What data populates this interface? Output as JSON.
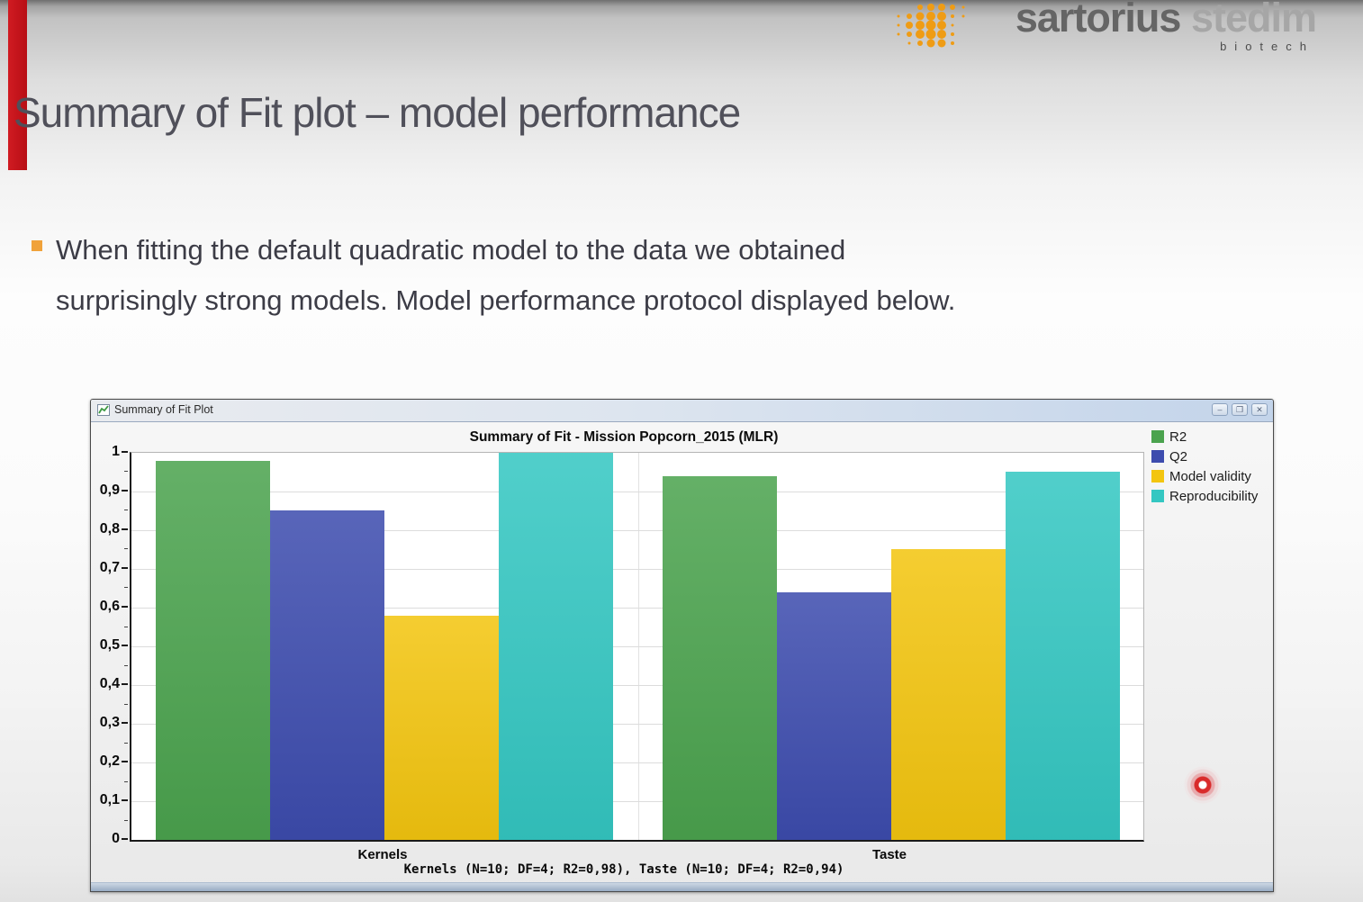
{
  "slide": {
    "title": "Summary of Fit plot – model performance",
    "bullet": {
      "lines": [
        "When fitting the default quadratic model to the data we obtained",
        "surprisingly strong models. Model performance protocol displayed below."
      ]
    }
  },
  "logo": {
    "word1": "sartorius",
    "word2": " stedim",
    "tagline": "biotech",
    "dot_color": "#ef9c15"
  },
  "window": {
    "title": "Summary of Fit Plot",
    "controls": [
      {
        "name": "minimize",
        "glyph": "–"
      },
      {
        "name": "maximize",
        "glyph": "❐"
      },
      {
        "name": "close",
        "glyph": "✕"
      }
    ]
  },
  "chart_data": {
    "type": "bar",
    "title": "Summary of Fit - Mission Popcorn_2015 (MLR)",
    "categories": [
      "Kernels",
      "Taste"
    ],
    "series": [
      {
        "name": "R2",
        "color": "#4ba34e",
        "values": [
          0.98,
          0.94
        ]
      },
      {
        "name": "Q2",
        "color": "#3d4cae",
        "values": [
          0.85,
          0.64
        ]
      },
      {
        "name": "Model validity",
        "color": "#f3c50f",
        "values": [
          0.58,
          0.75
        ]
      },
      {
        "name": "Reproducibility",
        "color": "#34c7c2",
        "values": [
          1.0,
          0.95
        ]
      }
    ],
    "ylim": [
      0,
      1
    ],
    "ytick_step": 0.1,
    "ytick_labels": [
      "0",
      "0,1",
      "0,2",
      "0,3",
      "0,4",
      "0,5",
      "0,6",
      "0,7",
      "0,8",
      "0,9",
      "1"
    ],
    "grid": "horizontal-major",
    "legend_position": "top-right",
    "footnote": "Kernels (N=10; DF=4; R2=0,98), Taste (N=10; DF=4; R2=0,94)"
  },
  "pointer": {
    "type": "laser-dot"
  }
}
